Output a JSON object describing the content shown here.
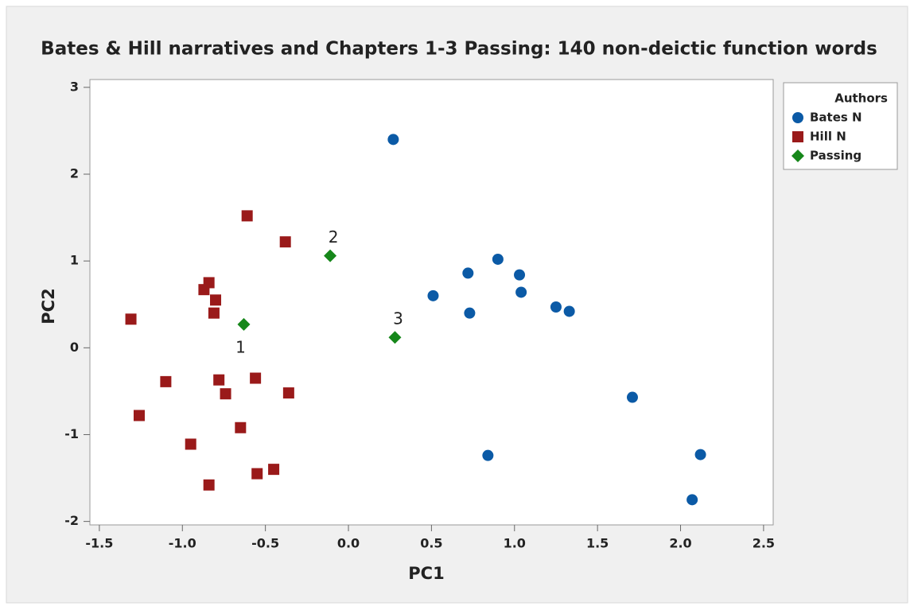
{
  "chart_data": {
    "type": "scatter",
    "title": "Bates & Hill narratives and Chapters 1-3 Passing: 140 non-deictic function words",
    "xlabel": "PC1",
    "ylabel": "PC2",
    "legend_title": "Authors",
    "legend": "outside right",
    "xlim": [
      -1.557,
      2.558
    ],
    "ylim": [
      -2.04,
      3.09
    ],
    "xticks": [
      -1.5,
      {
        "value": -1,
        "label": "-1.0"
      },
      -0.5,
      {
        "value": 0,
        "label": "0.0"
      },
      0.5,
      {
        "value": 1,
        "label": "1.0"
      },
      1.5,
      {
        "value": 2,
        "label": "2.0"
      },
      2.5
    ],
    "yticks": [
      -2,
      -1,
      0,
      1,
      2,
      3
    ],
    "series": [
      {
        "name": "Bates N",
        "color": "#0b5aa6",
        "marker": "circle",
        "x": [
          0.27,
          0.51,
          0.72,
          0.73,
          0.9,
          1.03,
          1.04,
          1.25,
          1.33,
          1.71,
          0.84,
          2.12,
          2.07
        ],
        "values": [
          2.4,
          0.6,
          0.86,
          0.4,
          1.02,
          0.84,
          0.64,
          0.47,
          0.42,
          -0.57,
          -1.24,
          -1.23,
          -1.75
        ]
      },
      {
        "name": "Hill N",
        "color": "#9a1a1a",
        "marker": "square",
        "x": [
          -0.61,
          -0.38,
          -0.84,
          -0.87,
          -0.8,
          -0.81,
          -1.31,
          -1.1,
          -0.78,
          -0.56,
          -0.74,
          -0.36,
          -1.26,
          -0.65,
          -0.95,
          -0.55,
          -0.45,
          -0.84
        ],
        "values": [
          1.52,
          1.22,
          0.75,
          0.67,
          0.55,
          0.4,
          0.33,
          -0.39,
          -0.37,
          -0.35,
          -0.53,
          -0.52,
          -0.78,
          -0.92,
          -1.11,
          -1.45,
          -1.4,
          -1.58
        ]
      },
      {
        "name": "Passing",
        "color": "#16871a",
        "marker": "diamond",
        "x": [
          -0.63,
          -0.11,
          0.28
        ],
        "values": [
          0.27,
          1.06,
          0.12
        ],
        "labels": [
          "1",
          "2",
          "3"
        ]
      }
    ]
  }
}
